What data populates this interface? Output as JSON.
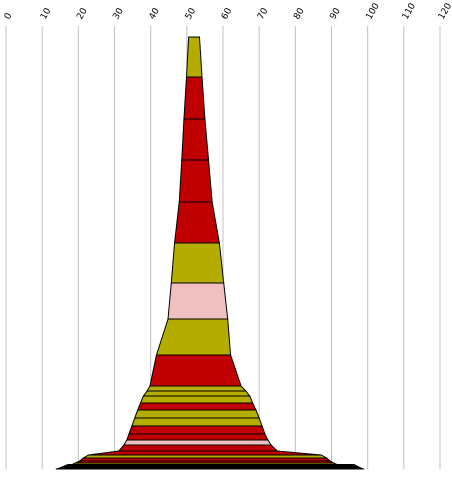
{
  "colors": {
    "red": "#c00000",
    "olive": "#b4ad00",
    "pink": "#f0c0c0",
    "black": "#000000",
    "grid": "#c0c0c0"
  },
  "chart_data": {
    "type": "area",
    "title": "",
    "xlabel": "",
    "ylabel": "",
    "xlim": [
      0,
      120
    ],
    "x_ticks": [
      "0",
      "10",
      "20",
      "30",
      "40",
      "50",
      "60",
      "70",
      "80",
      "90",
      "100",
      "110",
      "120"
    ],
    "grid": "vertical",
    "legend": "none",
    "layers": [
      {
        "left": 50.5,
        "right": 53.5,
        "color": "olive"
      },
      {
        "left": 49.9,
        "right": 54.2,
        "color": "red"
      },
      {
        "left": 49.2,
        "right": 55.0,
        "color": "red"
      },
      {
        "left": 48.6,
        "right": 56.0,
        "color": "red"
      },
      {
        "left": 47.9,
        "right": 57.0,
        "color": "red"
      },
      {
        "left": 46.6,
        "right": 59.0,
        "color": "olive"
      },
      {
        "left": 45.7,
        "right": 60.2,
        "color": "pink"
      },
      {
        "left": 44.8,
        "right": 61.3,
        "color": "olive"
      },
      {
        "left": 41.6,
        "right": 62.1,
        "color": "red"
      },
      {
        "left": 39.8,
        "right": 65.0,
        "color": "olive"
      },
      {
        "left": 39.0,
        "right": 66.3,
        "color": "olive"
      },
      {
        "left": 38.0,
        "right": 67.4,
        "color": "olive"
      },
      {
        "left": 37.2,
        "right": 68.2,
        "color": "red"
      },
      {
        "left": 36.4,
        "right": 69.1,
        "color": "olive"
      },
      {
        "left": 35.6,
        "right": 70.0,
        "color": "olive"
      },
      {
        "left": 34.8,
        "right": 70.8,
        "color": "red"
      },
      {
        "left": 34.0,
        "right": 71.6,
        "color": "red"
      },
      {
        "left": 33.4,
        "right": 72.4,
        "color": "pink"
      },
      {
        "left": 32.6,
        "right": 73.3,
        "color": "red"
      },
      {
        "left": 31.2,
        "right": 75.0,
        "color": "red"
      },
      {
        "left": 22.8,
        "right": 87.2,
        "color": "olive"
      },
      {
        "left": 21.4,
        "right": 88.6,
        "color": "red"
      },
      {
        "left": 20.4,
        "right": 89.6,
        "color": "red"
      },
      {
        "left": 19.2,
        "right": 90.6,
        "color": "olive"
      },
      {
        "left": 18.0,
        "right": 91.8,
        "color": "red"
      },
      {
        "left": 16.2,
        "right": 93.2,
        "color": "olive"
      },
      {
        "left": 13.8,
        "right": 99.0,
        "color": "black"
      }
    ]
  }
}
